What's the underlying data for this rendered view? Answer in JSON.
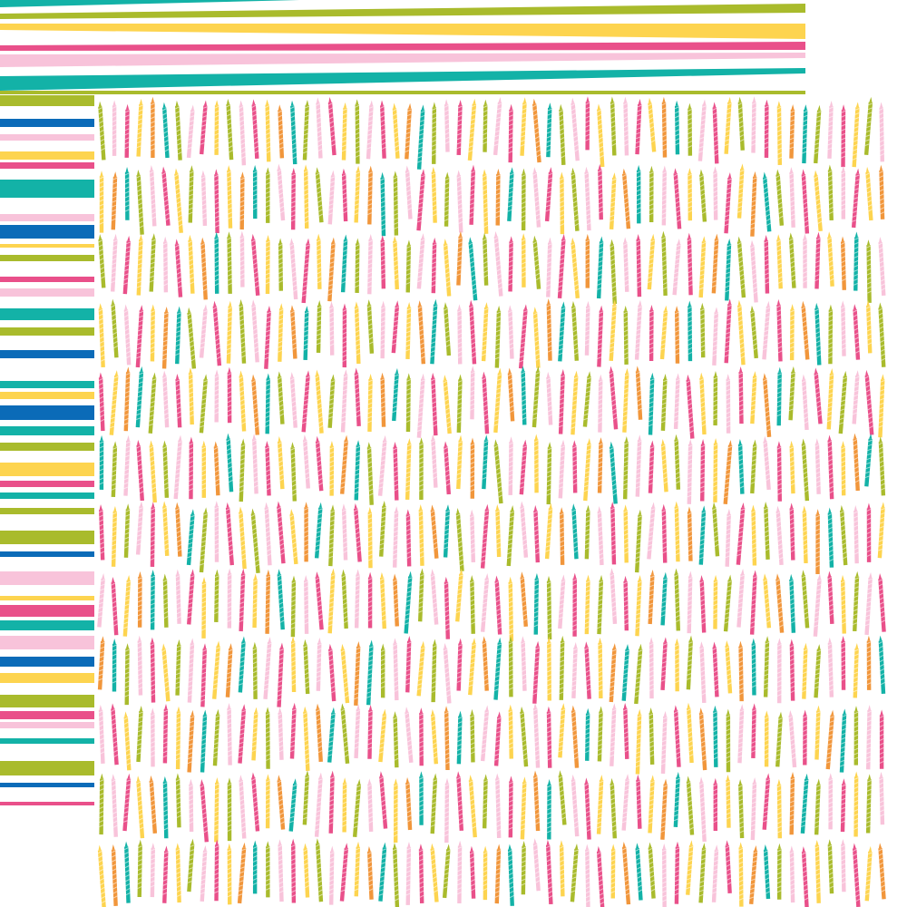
{
  "palette": {
    "green": "#a9bb2c",
    "light_pink": "#f8c3da",
    "pink": "#e9508a",
    "yellow": "#fdd44f",
    "orange": "#f1963b",
    "teal": "#13b2a7",
    "blue": "#0b6bb8",
    "background": "#ffffff"
  },
  "top_stripes": [
    {
      "color": "teal",
      "left": [
        0,
        8
      ],
      "right": [
        0,
        0
      ]
    },
    {
      "color": "green",
      "left": [
        15,
        21
      ],
      "right": [
        4,
        14
      ]
    },
    {
      "color": "yellow",
      "left": [
        26,
        33
      ],
      "right": [
        26,
        43
      ]
    },
    {
      "color": "pink",
      "left": [
        50,
        56
      ],
      "right": [
        46,
        55
      ]
    },
    {
      "color": "light_pink",
      "left": [
        60,
        74
      ],
      "right": [
        58,
        64
      ]
    },
    {
      "color": "teal",
      "left": [
        84,
        100
      ],
      "right": [
        75,
        81
      ]
    },
    {
      "color": "green",
      "left": [
        100,
        104
      ],
      "right": [
        100,
        104
      ]
    }
  ],
  "left_stripes": [
    [
      "green",
      105,
      117
    ],
    [
      "blue",
      131,
      140
    ],
    [
      "light_pink",
      148,
      155
    ],
    [
      "yellow",
      167,
      176
    ],
    [
      "pink",
      179,
      186
    ],
    [
      "teal",
      198,
      218
    ],
    [
      "light_pink",
      236,
      244
    ],
    [
      "blue",
      248,
      263
    ],
    [
      "yellow",
      269,
      273
    ],
    [
      "green",
      281,
      288
    ],
    [
      "pink",
      305,
      311
    ],
    [
      "light_pink",
      318,
      327
    ],
    [
      "teal",
      340,
      353
    ],
    [
      "green",
      361,
      370
    ],
    [
      "blue",
      386,
      395
    ],
    [
      "teal",
      420,
      428
    ],
    [
      "yellow",
      432,
      440
    ],
    [
      "blue",
      447,
      463
    ],
    [
      "teal",
      470,
      480
    ],
    [
      "green",
      488,
      497
    ],
    [
      "yellow",
      510,
      525
    ],
    [
      "pink",
      530,
      537
    ],
    [
      "teal",
      543,
      550
    ],
    [
      "green",
      560,
      567
    ],
    [
      "green",
      585,
      600
    ],
    [
      "blue",
      608,
      614
    ],
    [
      "light_pink",
      630,
      645
    ],
    [
      "yellow",
      657,
      662
    ],
    [
      "pink",
      667,
      680
    ],
    [
      "teal",
      684,
      695
    ],
    [
      "light_pink",
      701,
      716
    ],
    [
      "blue",
      724,
      735
    ],
    [
      "yellow",
      742,
      753
    ],
    [
      "green",
      766,
      780
    ],
    [
      "pink",
      784,
      793
    ],
    [
      "light_pink",
      796,
      803
    ],
    [
      "teal",
      814,
      820
    ],
    [
      "green",
      839,
      855
    ],
    [
      "blue",
      863,
      868
    ],
    [
      "pink",
      884,
      888
    ]
  ],
  "candle_pattern": {
    "rows": 12,
    "columns": 62,
    "colors": [
      "green",
      "light_pink",
      "pink",
      "yellow",
      "orange",
      "teal",
      "green",
      "light_pink",
      "pink",
      "yellow"
    ]
  }
}
